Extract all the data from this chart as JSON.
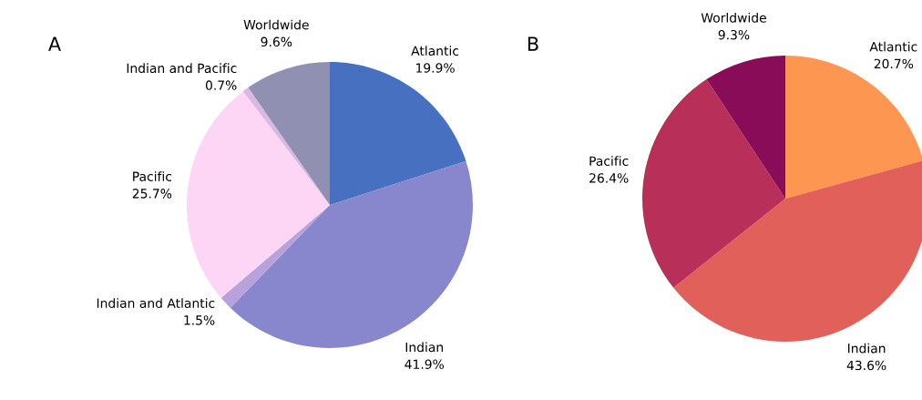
{
  "chart_data": [
    {
      "type": "pie",
      "title": "A",
      "categories": [
        "Atlantic",
        "Indian",
        "Indian and Atlantic",
        "Pacific",
        "Indian and Pacific",
        "Worldwide"
      ],
      "values": [
        19.9,
        41.9,
        1.5,
        25.7,
        0.7,
        9.6
      ],
      "value_labels": [
        "19.9%",
        "41.9%",
        "1.5%",
        "25.7%",
        "0.7%",
        "9.6%"
      ],
      "colors": [
        "#4770c0",
        "#8886cc",
        "#b8a2dc",
        "#fdd6f6",
        "#d9b9e2",
        "#9090b2"
      ]
    },
    {
      "type": "pie",
      "title": "B",
      "categories": [
        "Atlantic",
        "Indian",
        "Pacific",
        "Worldwide"
      ],
      "values": [
        20.7,
        43.6,
        26.4,
        9.3
      ],
      "value_labels": [
        "20.7%",
        "43.6%",
        "26.4%",
        "9.3%"
      ],
      "colors": [
        "#fd9650",
        "#e1605a",
        "#b8305a",
        "#880c58"
      ]
    }
  ]
}
